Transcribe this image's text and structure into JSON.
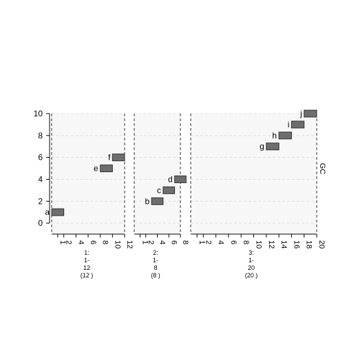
{
  "chart_data": {
    "type": "bar",
    "ylabel": "GC",
    "ylim": [
      -1,
      10
    ],
    "yticks": [
      0,
      2,
      4,
      6,
      8,
      10
    ],
    "grid": true,
    "panels": [
      {
        "name": "1",
        "caption": [
          "1:",
          "1-",
          "12",
          "(12 )"
        ],
        "xlim": [
          0,
          12
        ],
        "xticks": [
          "1",
          "2",
          "4",
          "6",
          "8",
          "10",
          "12"
        ],
        "xtick_values": [
          1,
          2,
          4,
          6,
          8,
          10,
          12
        ],
        "segments": [
          {
            "label": "a",
            "start": 0,
            "end": 2,
            "y": 1
          },
          {
            "label": "e",
            "start": 8,
            "end": 10,
            "y": 5
          },
          {
            "label": "f",
            "start": 10,
            "end": 12,
            "y": 6
          }
        ]
      },
      {
        "name": "2",
        "caption": [
          "2:",
          "1-",
          "8",
          "(8 )"
        ],
        "xlim": [
          0,
          8
        ],
        "xticks": [
          "1",
          "2",
          "4",
          "6",
          "8"
        ],
        "xtick_values": [
          1,
          2,
          4,
          6,
          8
        ],
        "segments": [
          {
            "label": "b",
            "start": 3,
            "end": 5,
            "y": 2
          },
          {
            "label": "c",
            "start": 5,
            "end": 7,
            "y": 3
          },
          {
            "label": "d",
            "start": 7,
            "end": 9,
            "y": 4
          }
        ]
      },
      {
        "name": "3",
        "caption": [
          "3:",
          "1-",
          "20",
          "(20 )"
        ],
        "xlim": [
          0,
          20
        ],
        "xticks": [
          "1",
          "2",
          "4",
          "6",
          "8",
          "10",
          "12",
          "14",
          "16",
          "18",
          "20"
        ],
        "xtick_values": [
          1,
          2,
          4,
          6,
          8,
          10,
          12,
          14,
          16,
          18,
          20
        ],
        "segments": [
          {
            "label": "g",
            "start": 12,
            "end": 14,
            "y": 7
          },
          {
            "label": "h",
            "start": 14,
            "end": 16,
            "y": 8
          },
          {
            "label": "i",
            "start": 16,
            "end": 18,
            "y": 9
          },
          {
            "label": "j",
            "start": 18,
            "end": 20,
            "y": 10
          }
        ]
      }
    ],
    "colors": {
      "segment": "#6e6e6e",
      "segment_border": "#333333",
      "panel_background": "#f7f7f7",
      "grid": "#e0e0e0"
    }
  }
}
